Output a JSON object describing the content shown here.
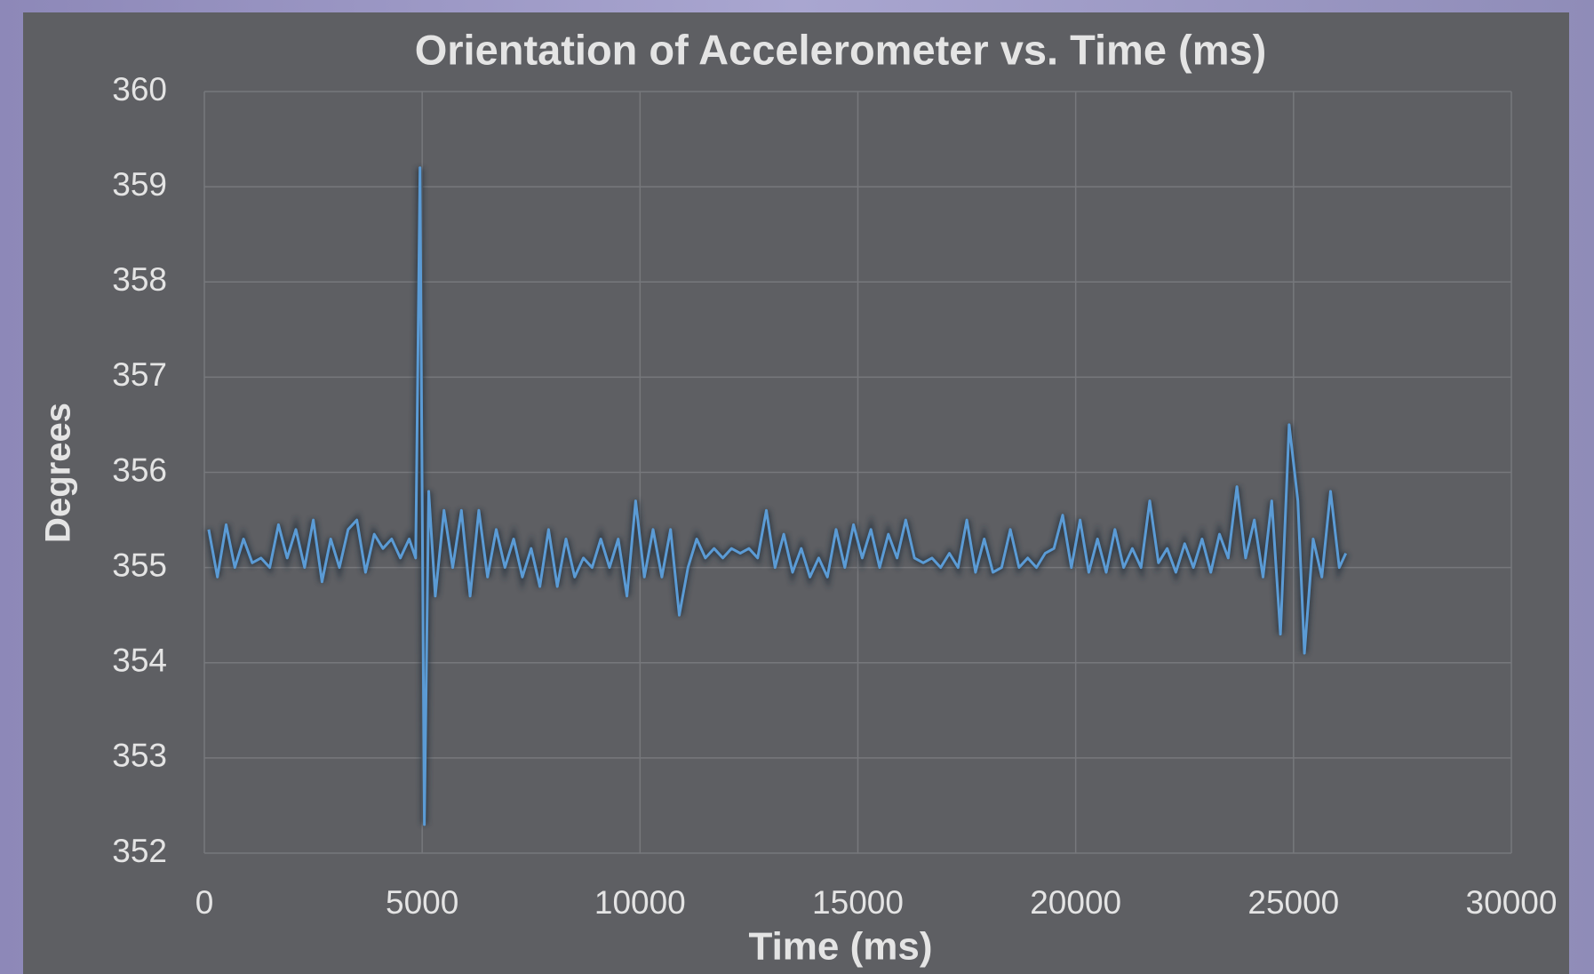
{
  "chart_data": {
    "type": "line",
    "title": "Orientation of Accelerometer vs. Time (ms)",
    "x_label": "Time (ms)",
    "y_label": "Degrees",
    "xlim": [
      0,
      30000
    ],
    "xticks": [
      0,
      5000,
      10000,
      15000,
      20000,
      25000,
      30000
    ],
    "ylim": [
      352,
      360
    ],
    "yticks": [
      352,
      353,
      354,
      355,
      356,
      357,
      358,
      359,
      360
    ],
    "grid": true,
    "series": [
      {
        "color": "#5b9bd5",
        "x": [
          100,
          300,
          500,
          700,
          900,
          1100,
          1300,
          1500,
          1700,
          1900,
          2100,
          2300,
          2500,
          2700,
          2900,
          3100,
          3300,
          3500,
          3700,
          3900,
          4100,
          4300,
          4500,
          4700,
          4850,
          4950,
          5050,
          5150,
          5300,
          5500,
          5700,
          5900,
          6100,
          6300,
          6500,
          6700,
          6900,
          7100,
          7300,
          7500,
          7700,
          7900,
          8100,
          8300,
          8500,
          8700,
          8900,
          9100,
          9300,
          9500,
          9700,
          9900,
          10100,
          10300,
          10500,
          10700,
          10900,
          11100,
          11300,
          11500,
          11700,
          11900,
          12100,
          12300,
          12500,
          12700,
          12900,
          13100,
          13300,
          13500,
          13700,
          13900,
          14100,
          14300,
          14500,
          14700,
          14900,
          15100,
          15300,
          15500,
          15700,
          15900,
          16100,
          16300,
          16500,
          16700,
          16900,
          17100,
          17300,
          17500,
          17700,
          17900,
          18100,
          18300,
          18500,
          18700,
          18900,
          19100,
          19300,
          19500,
          19700,
          19900,
          20100,
          20300,
          20500,
          20700,
          20900,
          21100,
          21300,
          21500,
          21700,
          21900,
          22100,
          22300,
          22500,
          22700,
          22900,
          23100,
          23300,
          23500,
          23700,
          23900,
          24100,
          24300,
          24500,
          24700,
          24900,
          25100,
          25250,
          25450,
          25650,
          25850,
          26050,
          26200
        ],
        "values": [
          355.4,
          354.9,
          355.45,
          355.0,
          355.3,
          355.05,
          355.1,
          355.0,
          355.45,
          355.1,
          355.4,
          355.0,
          355.5,
          354.85,
          355.3,
          355.0,
          355.4,
          355.5,
          354.95,
          355.35,
          355.2,
          355.3,
          355.1,
          355.3,
          355.1,
          359.2,
          352.3,
          355.8,
          354.7,
          355.6,
          355.0,
          355.6,
          354.7,
          355.6,
          354.9,
          355.4,
          355.0,
          355.3,
          354.9,
          355.2,
          354.8,
          355.4,
          354.8,
          355.3,
          354.9,
          355.1,
          355.0,
          355.3,
          355.0,
          355.3,
          354.7,
          355.7,
          354.9,
          355.4,
          354.9,
          355.4,
          354.5,
          355.0,
          355.3,
          355.1,
          355.2,
          355.1,
          355.2,
          355.15,
          355.2,
          355.1,
          355.6,
          355.0,
          355.35,
          354.95,
          355.2,
          354.9,
          355.1,
          354.9,
          355.4,
          355.0,
          355.45,
          355.1,
          355.4,
          355.0,
          355.35,
          355.1,
          355.5,
          355.1,
          355.05,
          355.1,
          355.0,
          355.15,
          355.0,
          355.5,
          354.95,
          355.3,
          354.95,
          355.0,
          355.4,
          355.0,
          355.1,
          355.0,
          355.15,
          355.2,
          355.55,
          355.0,
          355.5,
          354.95,
          355.3,
          354.95,
          355.4,
          355.0,
          355.2,
          355.0,
          355.7,
          355.05,
          355.2,
          354.95,
          355.25,
          355.0,
          355.3,
          354.95,
          355.35,
          355.1,
          355.85,
          355.1,
          355.5,
          354.9,
          355.7,
          354.3,
          356.5,
          355.7,
          354.1,
          355.3,
          354.9,
          355.8,
          355.0,
          355.15
        ]
      }
    ]
  }
}
